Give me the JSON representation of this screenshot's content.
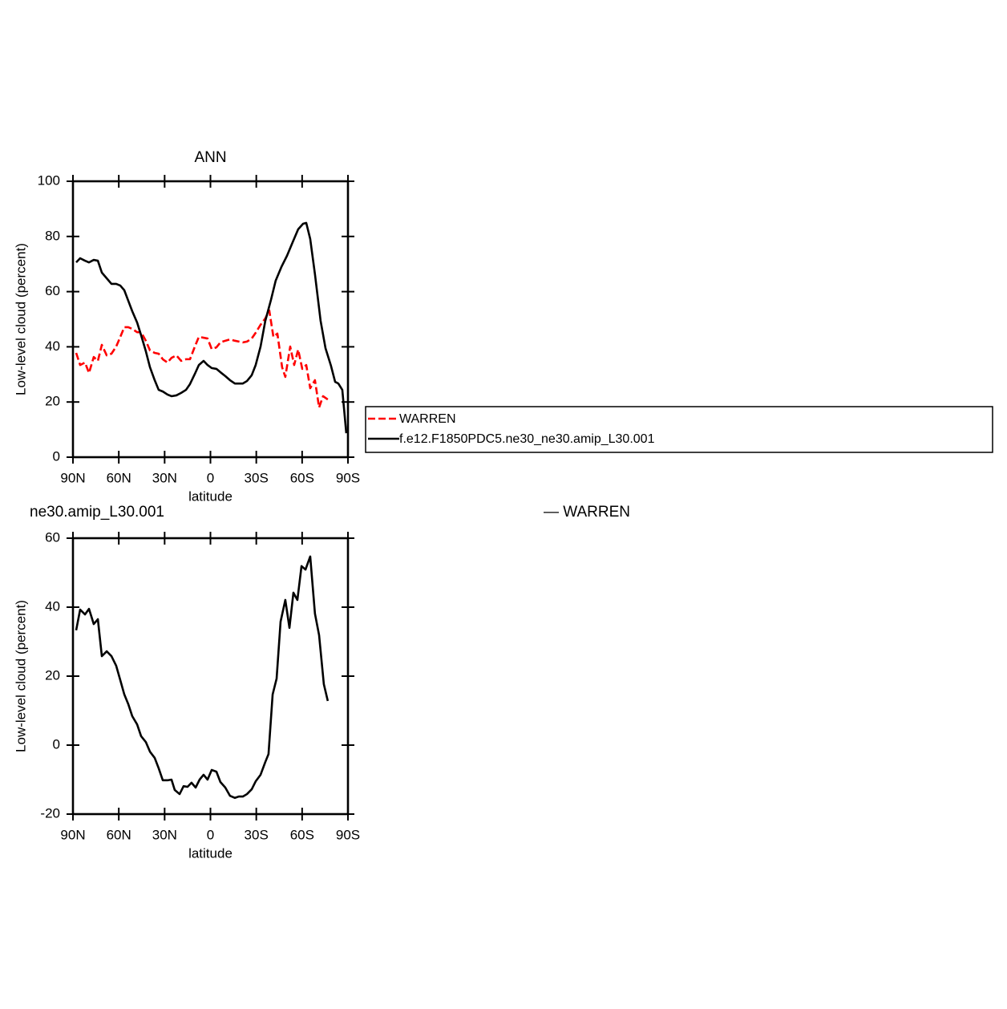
{
  "chart_data": [
    {
      "type": "line",
      "title": "ANN",
      "xlabel": "latitude",
      "ylabel": "Low-level cloud (percent)",
      "xlim": [
        90,
        -90
      ],
      "xticks": [
        {
          "value": 90,
          "label": "90N"
        },
        {
          "value": 60,
          "label": "60N"
        },
        {
          "value": 30,
          "label": "30N"
        },
        0,
        {
          "value": -30,
          "label": "30S"
        },
        {
          "value": -60,
          "label": "60S"
        },
        {
          "value": -90,
          "label": "90S"
        }
      ],
      "ylim": [
        0,
        100
      ],
      "yticks": [
        0,
        20,
        40,
        60,
        80,
        100
      ],
      "legend": "right",
      "series": [
        {
          "name": "WARREN",
          "color": "#ff0000",
          "linestyle": "dashed",
          "x": [
            87.9,
            85.3,
            82.1,
            79.5,
            76.4,
            73.7,
            71.1,
            67.9,
            64.8,
            61.7,
            59.0,
            56.4,
            53.8,
            51.2,
            48.0,
            45.4,
            42.3,
            39.6,
            36.5,
            33.9,
            31.2,
            28.1,
            25.5,
            22.3,
            19.2,
            16.0,
            13.4,
            10.2,
            7.6,
            4.5,
            1.9,
            -0.8,
            -3.9,
            -6.5,
            -9.7,
            -12.8,
            -16.0,
            -18.6,
            -21.2,
            -23.9,
            -27.0,
            -29.6,
            -32.8,
            -35.9,
            -38.5,
            -41.2,
            -43.8,
            -46.9,
            -49.0,
            -52.2,
            -54.8,
            -57.4,
            -60.1,
            -62.7,
            -65.3,
            -68.4,
            -71.1,
            -73.7,
            -76.8
          ],
          "values": [
            37.8,
            33.4,
            34.3,
            30.5,
            36.3,
            34.9,
            40.7,
            36.9,
            37.5,
            40.1,
            43.6,
            47.1,
            47.1,
            46.5,
            45.3,
            45.3,
            42.2,
            38.7,
            37.8,
            37.5,
            35.5,
            34.3,
            36.0,
            36.9,
            34.9,
            35.5,
            35.5,
            40.1,
            43.6,
            43.3,
            43.0,
            39.2,
            39.8,
            41.6,
            42.2,
            42.7,
            42.2,
            41.9,
            41.6,
            41.9,
            43.0,
            45.1,
            48.0,
            50.3,
            53.2,
            43.6,
            44.8,
            32.6,
            29.1,
            40.1,
            33.4,
            39.0,
            32.0,
            33.4,
            25.0,
            27.9,
            18.0,
            22.1,
            20.9
          ]
        },
        {
          "name": "f.e12.F1850PDC5.ne30_ne30.amip_L30.001",
          "color": "#000000",
          "linestyle": "solid",
          "x": [
            87.9,
            85.3,
            82.1,
            79.5,
            76.4,
            73.7,
            71.1,
            67.4,
            64.8,
            61.7,
            59.0,
            56.4,
            53.8,
            51.2,
            48.0,
            45.4,
            42.3,
            39.6,
            36.5,
            33.9,
            31.2,
            28.1,
            25.5,
            22.3,
            19.2,
            16.0,
            13.4,
            10.2,
            7.6,
            4.5,
            1.9,
            -0.8,
            -3.9,
            -6.5,
            -9.7,
            -12.8,
            -16.0,
            -18.6,
            -21.2,
            -23.9,
            -27.0,
            -29.6,
            -32.8,
            -35.9,
            -39.6,
            -42.7,
            -46.4,
            -50.1,
            -53.8,
            -57.4,
            -60.6,
            -62.7,
            -65.3,
            -68.4,
            -72.1,
            -75.3,
            -78.9,
            -81.6,
            -83.7,
            -86.3,
            -88.9
          ],
          "values": [
            70.6,
            72.1,
            71.2,
            70.6,
            71.5,
            71.2,
            66.9,
            64.5,
            62.8,
            62.8,
            62.2,
            60.5,
            56.7,
            52.9,
            48.8,
            44.2,
            38.4,
            32.6,
            27.9,
            24.4,
            23.8,
            22.7,
            22.1,
            22.4,
            23.3,
            24.4,
            26.5,
            30.2,
            33.4,
            34.9,
            33.4,
            32.3,
            32.0,
            30.8,
            29.4,
            27.9,
            26.7,
            26.7,
            26.7,
            27.6,
            29.7,
            33.4,
            40.1,
            49.4,
            57.0,
            64.0,
            68.9,
            73.0,
            77.9,
            82.6,
            84.6,
            84.9,
            79.1,
            66.3,
            49.4,
            39.5,
            33.1,
            27.3,
            26.7,
            24.4,
            8.7
          ]
        }
      ]
    },
    {
      "type": "line",
      "title": "ne30.amip_L30.001",
      "subtitle": "— WARREN",
      "xlabel": "latitude",
      "ylabel": "Low-level cloud (percent)",
      "xlim": [
        90,
        -90
      ],
      "xticks": [
        {
          "value": 90,
          "label": "90N"
        },
        {
          "value": 60,
          "label": "60N"
        },
        {
          "value": 30,
          "label": "30N"
        },
        0,
        {
          "value": -30,
          "label": "30S"
        },
        {
          "value": -60,
          "label": "60S"
        },
        {
          "value": -90,
          "label": "90S"
        }
      ],
      "ylim": [
        -20,
        60
      ],
      "yticks": [
        -20,
        0,
        20,
        40,
        60
      ],
      "series": [
        {
          "color": "#000000",
          "linestyle": "solid",
          "x": [
            87.9,
            85.3,
            82.1,
            79.5,
            76.4,
            73.7,
            71.1,
            67.9,
            64.8,
            61.7,
            59.0,
            56.4,
            53.8,
            51.2,
            48.0,
            45.4,
            42.3,
            39.6,
            36.5,
            33.9,
            31.2,
            28.1,
            25.5,
            23.4,
            20.2,
            17.6,
            15.0,
            12.4,
            9.7,
            7.1,
            4.5,
            1.9,
            -0.8,
            -3.9,
            -6.5,
            -9.7,
            -12.8,
            -16.0,
            -18.6,
            -21.2,
            -23.9,
            -27.0,
            -29.6,
            -32.8,
            -35.9,
            -38.0,
            -40.7,
            -43.3,
            -45.9,
            -49.0,
            -51.7,
            -54.3,
            -56.9,
            -59.6,
            -62.2,
            -65.3,
            -68.4,
            -71.1,
            -74.2,
            -76.8
          ],
          "values": [
            33.3,
            39.3,
            37.9,
            39.5,
            35.1,
            36.5,
            25.8,
            27.2,
            25.8,
            23.0,
            18.8,
            14.7,
            11.9,
            8.4,
            6.0,
            2.6,
            0.9,
            -1.9,
            -3.7,
            -6.7,
            -10.2,
            -10.2,
            -10.0,
            -13.0,
            -14.2,
            -11.9,
            -12.1,
            -10.9,
            -12.3,
            -10.0,
            -8.6,
            -10.0,
            -7.2,
            -7.7,
            -10.7,
            -12.3,
            -14.7,
            -15.3,
            -14.9,
            -14.9,
            -14.2,
            -12.8,
            -10.5,
            -8.6,
            -4.9,
            -2.6,
            14.7,
            19.3,
            35.8,
            42.1,
            34.0,
            44.2,
            42.1,
            51.9,
            50.9,
            54.7,
            38.1,
            31.9,
            17.7,
            12.8
          ]
        }
      ]
    }
  ]
}
